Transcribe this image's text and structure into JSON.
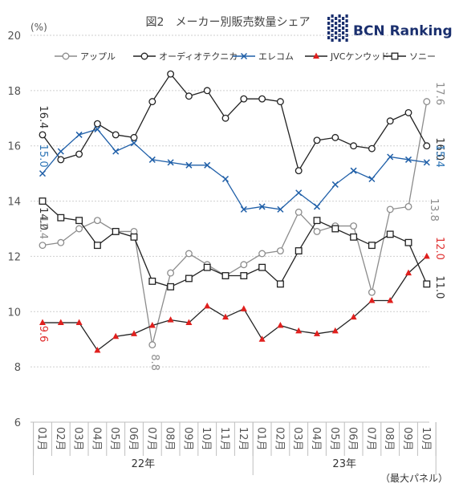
{
  "chart_data": {
    "type": "line",
    "title": "図2　メーカー別販売数量シェア",
    "logo_text": "BCN Ranking",
    "y_unit_label": "(%)",
    "footnote": "（最大パネル）",
    "ylim": [
      6,
      20
    ],
    "yticks": [
      6,
      8,
      10,
      12,
      14,
      16,
      18,
      20
    ],
    "grid": true,
    "legend_position": "top",
    "categories": [
      "01月",
      "02月",
      "03月",
      "04月",
      "05月",
      "06月",
      "07月",
      "08月",
      "09月",
      "10月",
      "11月",
      "12月",
      "01月",
      "02月",
      "03月",
      "04月",
      "05月",
      "06月",
      "07月",
      "08月",
      "09月",
      "10月"
    ],
    "year_groups": [
      {
        "label": "22年",
        "start": 0,
        "end": 11
      },
      {
        "label": "23年",
        "start": 12,
        "end": 21
      }
    ],
    "series": [
      {
        "name": "アップル",
        "color": "#8c8c8c",
        "label_color": "#8c8c8c",
        "marker": "circle",
        "values": [
          12.4,
          12.5,
          13.0,
          13.3,
          12.9,
          12.9,
          8.8,
          11.4,
          12.1,
          11.7,
          11.3,
          11.7,
          12.1,
          12.2,
          13.6,
          12.9,
          13.1,
          13.1,
          10.7,
          13.7,
          13.8,
          17.6
        ]
      },
      {
        "name": "オーディオテクニカ",
        "color": "#222222",
        "label_color": "#333333",
        "marker": "circle",
        "values": [
          16.4,
          15.5,
          15.7,
          16.8,
          16.4,
          16.3,
          17.6,
          18.6,
          17.8,
          18.0,
          17.0,
          17.7,
          17.7,
          17.6,
          15.1,
          16.2,
          16.3,
          16.0,
          15.9,
          16.9,
          17.2,
          16.0
        ]
      },
      {
        "name": "エレコム",
        "color": "#1f5fa8",
        "label_color": "#2e75b6",
        "marker": "x",
        "values": [
          15.0,
          15.8,
          16.4,
          16.6,
          15.8,
          16.1,
          15.5,
          15.4,
          15.3,
          15.3,
          14.8,
          13.7,
          13.8,
          13.7,
          14.3,
          13.8,
          14.6,
          15.1,
          14.8,
          15.6,
          15.5,
          15.4
        ]
      },
      {
        "name": "JVCケンウッド",
        "color": "#222222",
        "label_color": "#e03030",
        "marker": "triangle",
        "marker_color": "#e0201e",
        "values": [
          9.6,
          9.6,
          9.6,
          8.6,
          9.1,
          9.2,
          9.5,
          9.7,
          9.6,
          10.2,
          9.8,
          10.1,
          9.0,
          9.5,
          9.3,
          9.2,
          9.3,
          9.8,
          10.4,
          10.4,
          11.4,
          12.0
        ]
      },
      {
        "name": "ソニー",
        "color": "#222222",
        "label_color": "#333333",
        "marker": "square",
        "values": [
          14.0,
          13.4,
          13.3,
          12.4,
          12.9,
          12.7,
          11.1,
          10.9,
          11.2,
          11.6,
          11.3,
          11.3,
          11.6,
          11.0,
          12.2,
          13.3,
          13.0,
          12.7,
          12.4,
          12.8,
          12.5,
          11.0
        ]
      }
    ],
    "annotations": [
      {
        "text": "16.4",
        "series": 1,
        "index": 0
      },
      {
        "text": "15.0",
        "series": 2,
        "index": 0
      },
      {
        "text": "14.0",
        "series": 4,
        "index": 0
      },
      {
        "text": "12.4",
        "series": 0,
        "index": 0
      },
      {
        "text": "9.6",
        "series": 3,
        "index": 0
      },
      {
        "text": "8.8",
        "series": 0,
        "index": 6
      },
      {
        "text": "17.6",
        "series": 0,
        "index": 21
      },
      {
        "text": "16.0",
        "series": 1,
        "index": 21
      },
      {
        "text": "15.4",
        "series": 2,
        "index": 21
      },
      {
        "text": "13.8",
        "series": 0,
        "index": 20
      },
      {
        "text": "12.0",
        "series": 3,
        "index": 21
      },
      {
        "text": "11.0",
        "series": 4,
        "index": 21
      }
    ]
  }
}
